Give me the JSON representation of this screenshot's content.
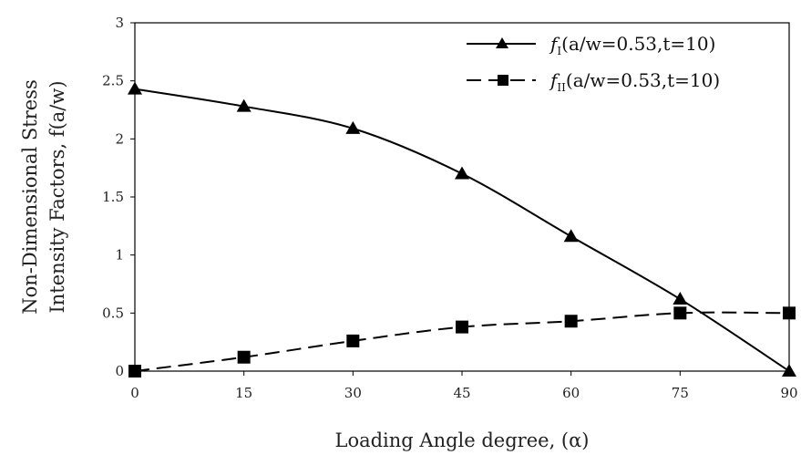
{
  "chart_data": {
    "type": "line",
    "title": "",
    "xlabel": "Loading Angle degree, (α)",
    "ylabel_line1": "Non-Dimensional Stress",
    "ylabel_line2": "Intensity Factors, f(a/w)",
    "x": [
      0,
      15,
      30,
      45,
      60,
      75,
      90
    ],
    "xlim": [
      0,
      90
    ],
    "ylim": [
      0,
      3
    ],
    "xticks": [
      "0",
      "15",
      "30",
      "45",
      "60",
      "75",
      "90"
    ],
    "yticks": [
      "0",
      "0.5",
      "1",
      "1.5",
      "2",
      "2.5",
      "3"
    ],
    "grid": false,
    "legend_position": "top-right",
    "series": [
      {
        "name": "fI(a/w=0.53,t=10)",
        "legend_f": "f",
        "legend_sub": "I",
        "legend_rest": "(a/w=0.53,t=10)",
        "values": [
          2.43,
          2.28,
          2.09,
          1.7,
          1.16,
          0.62,
          0
        ],
        "marker": "triangle",
        "line_style": "solid",
        "color": "#000000"
      },
      {
        "name": "fII(a/w=0.53,t=10)",
        "legend_f": "f",
        "legend_sub": "II",
        "legend_rest": "(a/w=0.53,t=10)",
        "values": [
          0,
          0.12,
          0.26,
          0.38,
          0.43,
          0.5,
          0.5
        ],
        "marker": "square",
        "line_style": "dashed",
        "color": "#000000"
      }
    ]
  }
}
